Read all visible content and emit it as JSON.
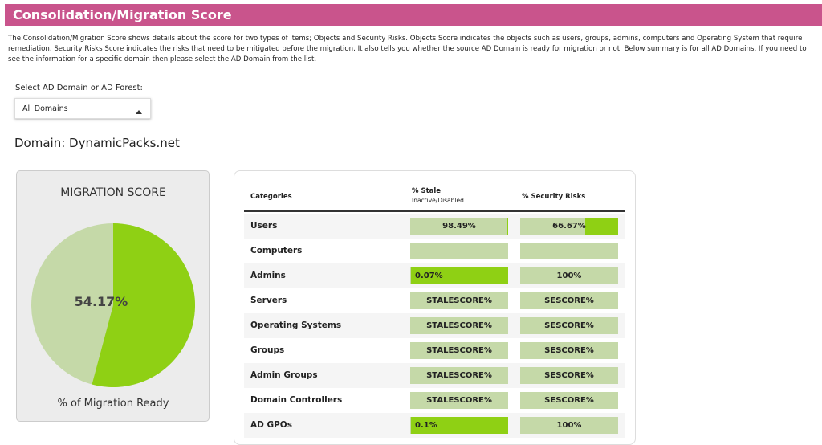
{
  "header": {
    "title": "Consolidation/Migration Score"
  },
  "description": "The Consolidation/Migration Score shows details about the score for two types of items; Objects and Security Risks. Objects Score indicates the objects such as users, groups, admins, computers and Operating System that require remediation. Security Risks Score indicates the risks that need to be mitigated before the migration. It also tells you whether the source AD Domain is ready for migration or not. Below summary is for all AD Domains. If you need to see the information for a specific domain then please select the AD Domain from the list.",
  "selector": {
    "label": "Select AD Domain or AD Forest:",
    "value": "All Domains"
  },
  "domain_heading": "Domain: DynamicPacks.net",
  "score": {
    "title": "MIGRATION SCORE",
    "value": 54.17,
    "label": "54.17%",
    "caption": "% of Migration Ready",
    "color": "#8fd014",
    "rest_color": "#c5d9a8"
  },
  "table": {
    "headers": {
      "category": "Categories",
      "stale": "% Stale",
      "stale_sub": "Inactive/Disabled",
      "risk": "% Security Risks"
    },
    "rows": [
      {
        "category": "Users",
        "stale": {
          "value": 98.49,
          "label": "98.49%"
        },
        "risk": {
          "value": 66.67,
          "label": "66.67%"
        }
      },
      {
        "category": "Computers",
        "stale": null,
        "risk": null
      },
      {
        "category": "Admins",
        "stale": {
          "value": 0.07,
          "label": "0.07%"
        },
        "risk": {
          "value": 100,
          "label": "100%"
        }
      },
      {
        "category": "Servers",
        "stale": {
          "label": "STALESCORE%"
        },
        "risk": {
          "label": "SESCORE%"
        }
      },
      {
        "category": "Operating Systems",
        "stale": {
          "label": "STALESCORE%"
        },
        "risk": {
          "label": "SESCORE%"
        }
      },
      {
        "category": "Groups",
        "stale": {
          "label": "STALESCORE%"
        },
        "risk": {
          "label": "SESCORE%"
        }
      },
      {
        "category": "Admin Groups",
        "stale": {
          "label": "STALESCORE%"
        },
        "risk": {
          "label": "SESCORE%"
        }
      },
      {
        "category": "Domain Controllers",
        "stale": {
          "label": "STALESCORE%"
        },
        "risk": {
          "label": "SESCORE%"
        }
      },
      {
        "category": "AD GPOs",
        "stale": {
          "value": 0.1,
          "label": "0.1%"
        },
        "risk": {
          "value": 100,
          "label": "100%"
        }
      }
    ]
  }
}
